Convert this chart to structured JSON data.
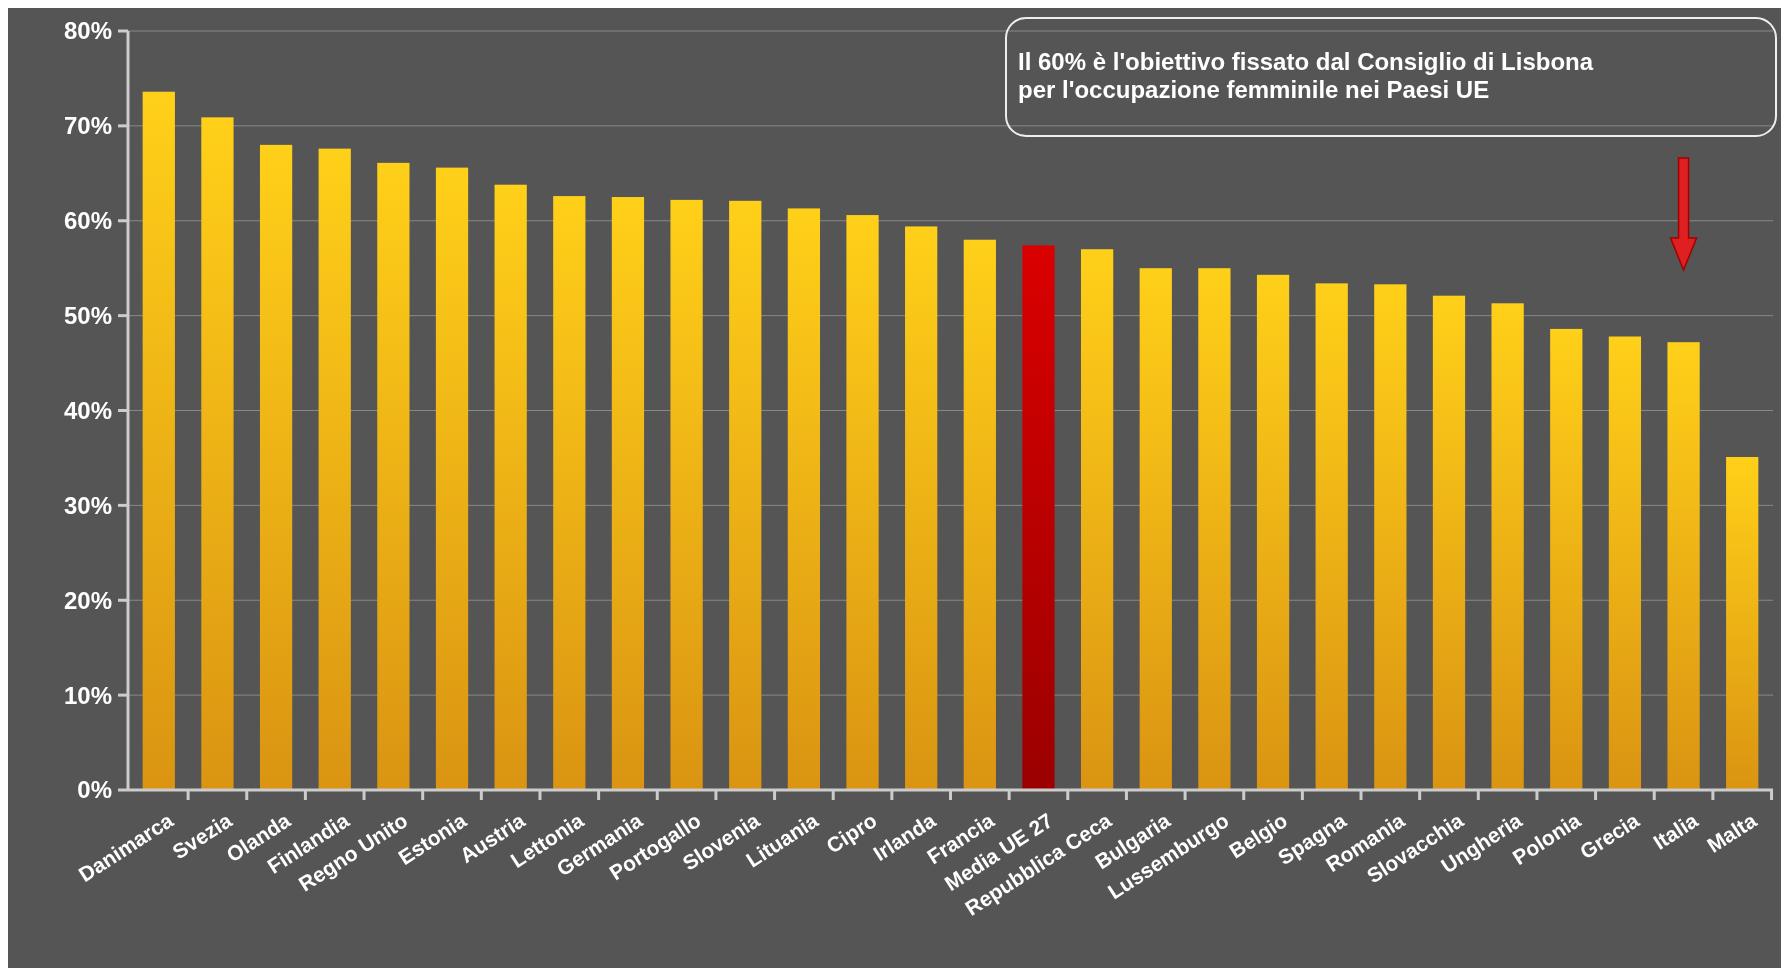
{
  "chart_data": {
    "type": "bar",
    "categories": [
      "Danimarca",
      "Svezia",
      "Olanda",
      "Finlandia",
      "Regno Unito",
      "Estonia",
      "Austria",
      "Lettonia",
      "Germania",
      "Portogallo",
      "Slovenia",
      "Lituania",
      "Cipro",
      "Irlanda",
      "Francia",
      "Media UE 27",
      "Repubblica Ceca",
      "Bulgaria",
      "Lussemburgo",
      "Belgio",
      "Spagna",
      "Romania",
      "Slovacchia",
      "Ungheria",
      "Polonia",
      "Grecia",
      "Italia",
      "Malta"
    ],
    "values": [
      73.6,
      70.9,
      68.0,
      67.6,
      66.1,
      65.6,
      63.8,
      62.6,
      62.5,
      62.2,
      62.1,
      61.3,
      60.6,
      59.4,
      58.0,
      57.4,
      57.0,
      55.0,
      55.0,
      54.3,
      53.4,
      53.3,
      52.1,
      51.3,
      48.6,
      47.8,
      47.2,
      35.1
    ],
    "colors": [
      "#f7a814",
      "#f7a814",
      "#f7a814",
      "#f7a814",
      "#f7a814",
      "#f7a814",
      "#f7a814",
      "#f7a814",
      "#f7a814",
      "#f7a814",
      "#f7a814",
      "#f7a814",
      "#f7a814",
      "#f7a814",
      "#f7a814",
      "#b00000",
      "#f7a814",
      "#f7a814",
      "#f7a814",
      "#f7a814",
      "#f7a814",
      "#f7a814",
      "#f7a814",
      "#f7a814",
      "#f7a814",
      "#f7a814",
      "#f7a814",
      "#f7a814"
    ],
    "ylim": [
      0,
      80
    ],
    "yticks": [
      {
        "value": 0,
        "label": "0%"
      },
      {
        "value": 10,
        "label": "10%"
      },
      {
        "value": 20,
        "label": "20%"
      },
      {
        "value": 30,
        "label": "30%"
      },
      {
        "value": 40,
        "label": "40%"
      },
      {
        "value": 50,
        "label": "50%"
      },
      {
        "value": 60,
        "label": "60%"
      },
      {
        "value": 70,
        "label": "70%"
      },
      {
        "value": 80,
        "label": "80%"
      }
    ],
    "grid": "y",
    "annotations": [
      "Il 60% è l'obiettivo fissato dal Consiglio di Lisbona\nper l'occupazione femminile nei Paesi UE"
    ]
  }
}
